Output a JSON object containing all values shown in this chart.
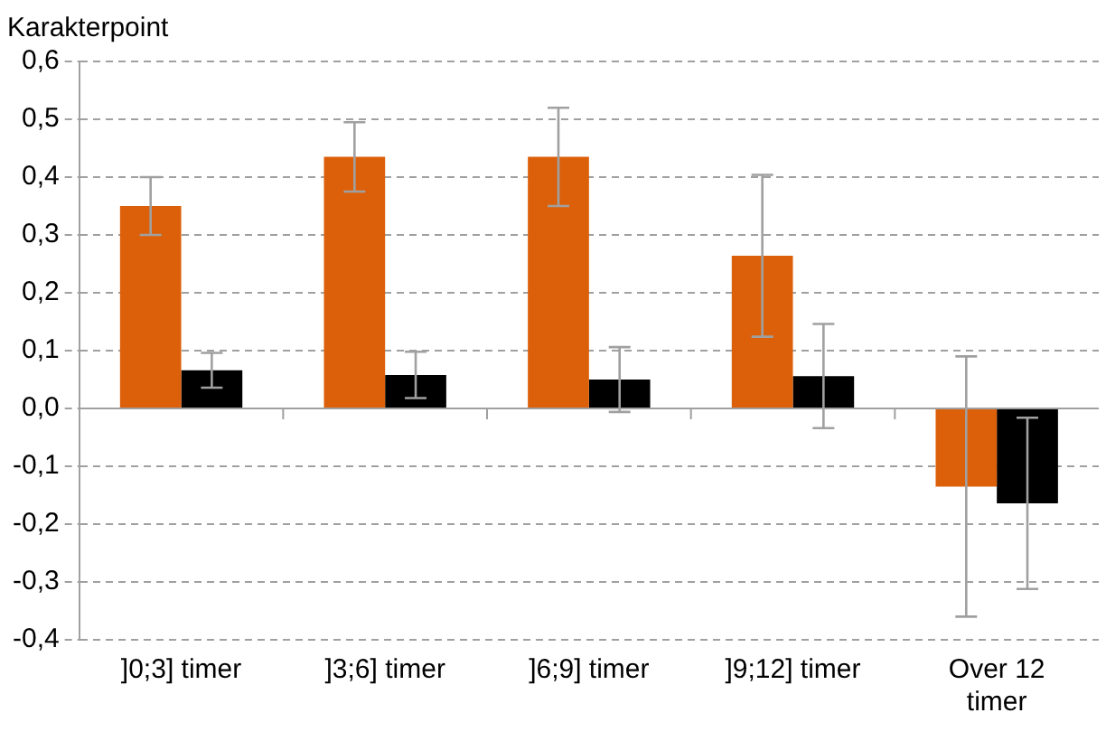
{
  "chart_data": {
    "type": "bar",
    "ylabel": "Karakterpoint",
    "categories": [
      "]0;3] timer",
      "]3;6] timer",
      "]6;9] timer",
      "]9;12] timer",
      "Over 12 timer"
    ],
    "series": [
      {
        "color": "#dc600a",
        "values": [
          0.35,
          0.435,
          0.435,
          0.264,
          -0.135
        ],
        "errors": [
          0.05,
          0.06,
          0.085,
          0.14,
          0.225
        ]
      },
      {
        "color": "#000000",
        "values": [
          0.066,
          0.058,
          0.05,
          0.056,
          -0.164
        ],
        "errors": [
          0.03,
          0.04,
          0.056,
          0.09,
          0.148
        ]
      }
    ],
    "ylim": [
      -0.4,
      0.6
    ],
    "yticks": [
      {
        "value": -0.4,
        "label": "-0,4"
      },
      {
        "value": -0.3,
        "label": "-0,3"
      },
      {
        "value": -0.2,
        "label": "-0,2"
      },
      {
        "value": -0.1,
        "label": "-0,1"
      },
      {
        "value": 0,
        "label": "0,0"
      },
      {
        "value": 0.1,
        "label": "0,1"
      },
      {
        "value": 0.2,
        "label": "0,2"
      },
      {
        "value": 0.3,
        "label": "0,3"
      },
      {
        "value": 0.4,
        "label": "0,4"
      },
      {
        "value": 0.5,
        "label": "0,5"
      },
      {
        "value": 0.6,
        "label": "0,6"
      }
    ],
    "grid": "y",
    "legend": false
  }
}
